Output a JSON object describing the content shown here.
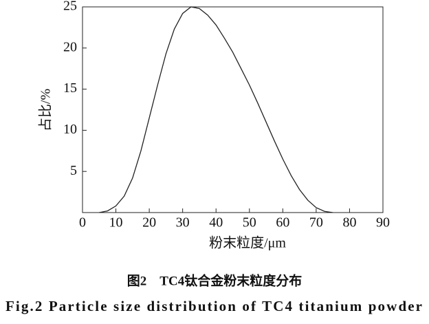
{
  "chart_data": {
    "type": "line",
    "x_label": "粉末粒度/μm",
    "y_label": "占比/%",
    "caption": "图2　TC4钛合金粉末粒度分布",
    "caption_en": "Fig.2   Particle size distribution of TC4 titanium powder",
    "x": [
      5,
      7.5,
      10,
      12.5,
      15,
      17.5,
      20,
      22.5,
      25,
      27.5,
      30,
      32.5,
      35,
      37.5,
      40,
      42.5,
      45,
      47.5,
      50,
      52.5,
      55,
      57.5,
      60,
      62.5,
      65,
      67.5,
      70,
      72.5,
      75
    ],
    "series": [
      {
        "color": "#222222",
        "values": [
          0,
          0.2,
          0.8,
          2,
          4.2,
          7.5,
          11.5,
          15.5,
          19.3,
          22.3,
          24.2,
          25,
          24.8,
          24,
          22.8,
          21.2,
          19.5,
          17.5,
          15.5,
          13.3,
          11,
          8.7,
          6.5,
          4.5,
          2.8,
          1.5,
          0.6,
          0.15,
          0
        ]
      }
    ],
    "xlim": [
      0,
      90
    ],
    "xticks": [
      0,
      10,
      20,
      30,
      40,
      50,
      60,
      70,
      80,
      90
    ],
    "ylim": [
      0,
      25
    ],
    "yticks": [
      5,
      10,
      15,
      20,
      25
    ]
  }
}
